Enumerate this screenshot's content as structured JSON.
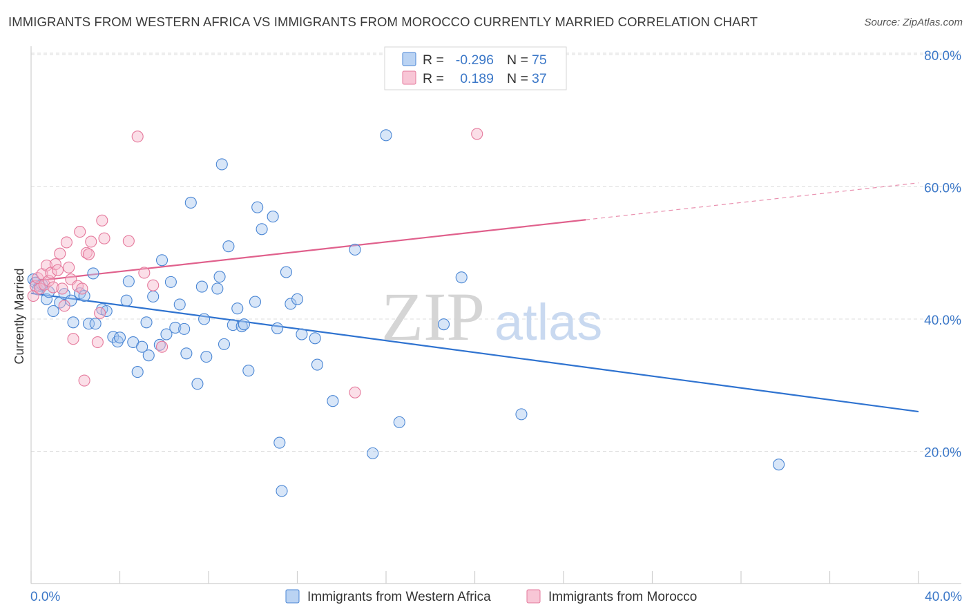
{
  "title": "IMMIGRANTS FROM WESTERN AFRICA VS IMMIGRANTS FROM MOROCCO CURRENTLY MARRIED CORRELATION CHART",
  "source": "Source: ZipAtlas.com",
  "watermark": {
    "zip": "ZIP",
    "atlas": "atlas"
  },
  "colors": {
    "blue_fill": "#a9c8f0",
    "blue_stroke": "#4a86d4",
    "blue_line": "#2f73d0",
    "pink_fill": "#f6b8cc",
    "pink_stroke": "#e5799c",
    "pink_line": "#e0608c",
    "tick_text": "#3c78c8",
    "grid": "#dddddd"
  },
  "legend": {
    "rows": [
      {
        "r_label": "R =",
        "r_value": "-0.296",
        "n_label": "N =",
        "n_value": "75"
      },
      {
        "r_label": "R =",
        "r_value": "0.189",
        "n_label": "N =",
        "n_value": "37"
      }
    ]
  },
  "chart_data": {
    "type": "scatter",
    "title": "IMMIGRANTS FROM WESTERN AFRICA VS IMMIGRANTS FROM MOROCCO CURRENTLY MARRIED CORRELATION CHART",
    "xlabel": "",
    "ylabel": "Currently Married",
    "xlim": [
      0,
      40
    ],
    "ylim": [
      0,
      80
    ],
    "x_tick_labels": [
      "0.0%",
      "40.0%"
    ],
    "y_ticks": [
      20,
      40,
      60,
      80
    ],
    "y_tick_labels": [
      "20.0%",
      "40.0%",
      "60.0%",
      "80.0%"
    ],
    "grid": true,
    "legend_position": "bottom",
    "series": [
      {
        "name": "Immigrants from Western Africa",
        "color": "#4a86d4",
        "r": -0.296,
        "n": 75,
        "trend": {
          "x": [
            0,
            40
          ],
          "y": [
            43.9,
            26.0
          ],
          "dashed_from": null
        },
        "points": [
          [
            0.1,
            46.0
          ],
          [
            0.2,
            45.5
          ],
          [
            0.3,
            44.5
          ],
          [
            0.4,
            45.0
          ],
          [
            0.5,
            45.2
          ],
          [
            0.7,
            43.0
          ],
          [
            0.8,
            44.1
          ],
          [
            1.0,
            41.2
          ],
          [
            1.3,
            42.5
          ],
          [
            1.5,
            43.8
          ],
          [
            1.8,
            42.8
          ],
          [
            1.9,
            39.5
          ],
          [
            2.2,
            43.9
          ],
          [
            2.4,
            43.5
          ],
          [
            2.6,
            39.3
          ],
          [
            2.8,
            46.9
          ],
          [
            2.9,
            39.3
          ],
          [
            3.2,
            41.5
          ],
          [
            3.4,
            41.2
          ],
          [
            3.7,
            37.3
          ],
          [
            3.9,
            36.6
          ],
          [
            4.0,
            37.2
          ],
          [
            4.3,
            42.8
          ],
          [
            4.4,
            45.7
          ],
          [
            4.6,
            36.5
          ],
          [
            4.8,
            32.0
          ],
          [
            5.0,
            35.8
          ],
          [
            5.2,
            39.5
          ],
          [
            5.3,
            34.5
          ],
          [
            5.5,
            43.4
          ],
          [
            5.8,
            36.1
          ],
          [
            5.9,
            48.9
          ],
          [
            6.1,
            37.7
          ],
          [
            6.3,
            45.6
          ],
          [
            6.5,
            38.7
          ],
          [
            6.7,
            42.2
          ],
          [
            6.9,
            38.5
          ],
          [
            7.0,
            34.8
          ],
          [
            7.2,
            57.6
          ],
          [
            7.5,
            30.2
          ],
          [
            7.7,
            44.9
          ],
          [
            7.8,
            40.0
          ],
          [
            7.9,
            34.3
          ],
          [
            8.4,
            44.6
          ],
          [
            8.5,
            46.4
          ],
          [
            8.6,
            63.4
          ],
          [
            8.7,
            36.2
          ],
          [
            8.9,
            51.0
          ],
          [
            9.1,
            39.1
          ],
          [
            9.3,
            41.6
          ],
          [
            9.5,
            38.9
          ],
          [
            9.6,
            39.2
          ],
          [
            9.8,
            32.2
          ],
          [
            10.1,
            42.6
          ],
          [
            10.2,
            56.9
          ],
          [
            10.4,
            53.6
          ],
          [
            10.9,
            55.5
          ],
          [
            11.1,
            38.6
          ],
          [
            11.2,
            21.3
          ],
          [
            11.3,
            14.0
          ],
          [
            11.5,
            47.1
          ],
          [
            11.7,
            42.3
          ],
          [
            12.0,
            43.0
          ],
          [
            12.2,
            37.7
          ],
          [
            12.8,
            37.1
          ],
          [
            12.9,
            33.1
          ],
          [
            13.6,
            27.6
          ],
          [
            14.6,
            50.5
          ],
          [
            15.4,
            19.7
          ],
          [
            16.0,
            67.8
          ],
          [
            16.6,
            24.4
          ],
          [
            18.6,
            39.2
          ],
          [
            19.4,
            46.3
          ],
          [
            22.1,
            25.6
          ],
          [
            33.7,
            18.0
          ]
        ]
      },
      {
        "name": "Immigrants from Morocco",
        "color": "#e5799c",
        "r": 0.189,
        "n": 37,
        "trend": {
          "x": [
            0,
            40
          ],
          "y": [
            45.7,
            60.6
          ],
          "dashed_from": 25
        },
        "points": [
          [
            0.1,
            43.5
          ],
          [
            0.2,
            45.0
          ],
          [
            0.3,
            46.2
          ],
          [
            0.4,
            44.6
          ],
          [
            0.5,
            46.8
          ],
          [
            0.6,
            45.2
          ],
          [
            0.7,
            48.1
          ],
          [
            0.8,
            45.8
          ],
          [
            0.9,
            47.0
          ],
          [
            1.0,
            44.8
          ],
          [
            1.1,
            48.3
          ],
          [
            1.2,
            47.4
          ],
          [
            1.3,
            49.9
          ],
          [
            1.4,
            44.6
          ],
          [
            1.5,
            42.0
          ],
          [
            1.6,
            51.6
          ],
          [
            1.7,
            47.8
          ],
          [
            1.8,
            46.0
          ],
          [
            1.9,
            37.0
          ],
          [
            2.1,
            45.0
          ],
          [
            2.2,
            53.2
          ],
          [
            2.3,
            44.6
          ],
          [
            2.4,
            30.7
          ],
          [
            2.5,
            50.0
          ],
          [
            2.6,
            49.8
          ],
          [
            2.7,
            51.7
          ],
          [
            3.0,
            36.5
          ],
          [
            3.1,
            40.9
          ],
          [
            3.2,
            54.9
          ],
          [
            3.3,
            52.2
          ],
          [
            4.4,
            51.8
          ],
          [
            4.8,
            67.6
          ],
          [
            5.1,
            47.0
          ],
          [
            5.5,
            45.1
          ],
          [
            5.9,
            35.8
          ],
          [
            14.6,
            28.9
          ],
          [
            20.1,
            68.0
          ]
        ]
      }
    ]
  }
}
